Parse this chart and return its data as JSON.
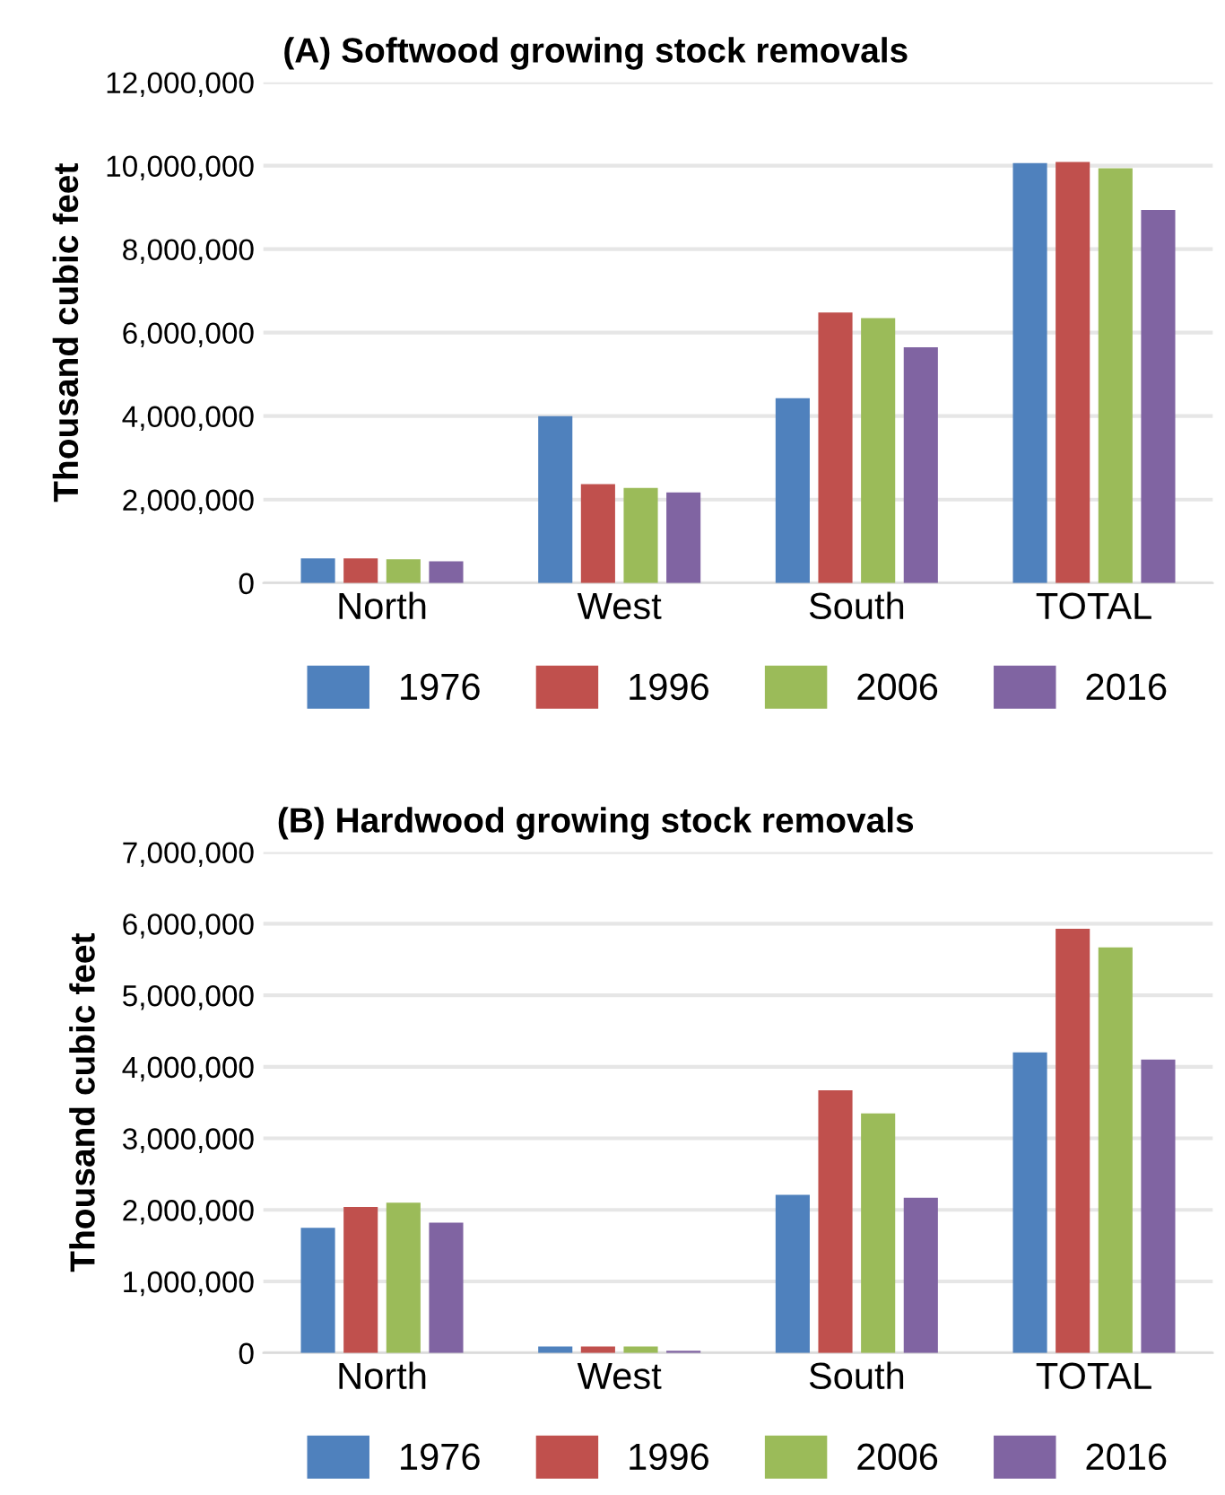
{
  "chart_data": [
    {
      "type": "bar",
      "title": "(A) Softwood growing stock removals",
      "ylabel": "Thousand cubic feet",
      "categories": [
        "North",
        "West",
        "South",
        "TOTAL"
      ],
      "series": [
        {
          "name": "1976",
          "color": "#4f81bd",
          "values": [
            590000,
            4000000,
            4430000,
            10060000
          ]
        },
        {
          "name": "1996",
          "color": "#c0504d",
          "values": [
            590000,
            2370000,
            6480000,
            10090000
          ]
        },
        {
          "name": "2006",
          "color": "#9bbb59",
          "values": [
            570000,
            2280000,
            6350000,
            9940000
          ]
        },
        {
          "name": "2016",
          "color": "#8064a2",
          "values": [
            520000,
            2170000,
            5650000,
            8940000
          ]
        }
      ],
      "ylim": [
        0,
        12000000
      ],
      "yticks": [
        {
          "value": 0,
          "label": "0"
        },
        {
          "value": 2000000,
          "label": "2,000,000"
        },
        {
          "value": 4000000,
          "label": "4,000,000"
        },
        {
          "value": 6000000,
          "label": "6,000,000"
        },
        {
          "value": 8000000,
          "label": "8,000,000"
        },
        {
          "value": 10000000,
          "label": "10,000,000"
        },
        {
          "value": 12000000,
          "label": "12,000,000"
        }
      ],
      "grid": "y",
      "legend": "bottom"
    },
    {
      "type": "bar",
      "title": "(B) Hardwood growing stock removals",
      "ylabel": "Thousand cubic feet",
      "categories": [
        "North",
        "West",
        "South",
        "TOTAL"
      ],
      "series": [
        {
          "name": "1976",
          "color": "#4f81bd",
          "values": [
            1750000,
            90000,
            2210000,
            4200000
          ]
        },
        {
          "name": "1996",
          "color": "#c0504d",
          "values": [
            2040000,
            90000,
            3670000,
            5930000
          ]
        },
        {
          "name": "2006",
          "color": "#9bbb59",
          "values": [
            2100000,
            90000,
            3350000,
            5670000
          ]
        },
        {
          "name": "2016",
          "color": "#8064a2",
          "values": [
            1820000,
            30000,
            2170000,
            4100000
          ]
        }
      ],
      "ylim": [
        0,
        7000000
      ],
      "yticks": [
        {
          "value": 0,
          "label": "0"
        },
        {
          "value": 1000000,
          "label": "1,000,000"
        },
        {
          "value": 2000000,
          "label": "2,000,000"
        },
        {
          "value": 3000000,
          "label": "3,000,000"
        },
        {
          "value": 4000000,
          "label": "4,000,000"
        },
        {
          "value": 5000000,
          "label": "5,000,000"
        },
        {
          "value": 6000000,
          "label": "6,000,000"
        },
        {
          "value": 7000000,
          "label": "7,000,000"
        }
      ],
      "grid": "y",
      "legend": "bottom"
    }
  ]
}
